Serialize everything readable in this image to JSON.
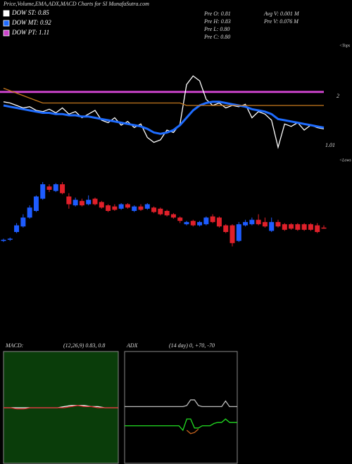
{
  "chart_data": [
    {
      "type": "line",
      "title": "Price,Volume,EMA,ADX,MACD Charts for SI MunafaSutra.com",
      "stats": [
        "Pre O: 0.81",
        "Pre H: 0.83",
        "Pre L: 0.80",
        "Pre C: 0.80",
        "Avg V: 0.001 M",
        "Pre V: 0.076 M"
      ],
      "annotations": [
        "<Tops",
        "2",
        "1.01",
        "<Lows"
      ],
      "ylim": [
        0.6,
        1.4
      ],
      "series": [
        {
          "name": "DOW ST: 0.85",
          "color": "#ffffff",
          "values": [
            1.03,
            1.02,
            1.0,
            0.98,
            0.99,
            0.96,
            0.95,
            0.97,
            0.94,
            0.98,
            0.93,
            0.95,
            0.9,
            0.93,
            0.96,
            0.88,
            0.86,
            0.9,
            0.84,
            0.87,
            0.82,
            0.85,
            0.74,
            0.7,
            0.72,
            0.8,
            0.78,
            0.85,
            1.17,
            1.24,
            1.2,
            1.05,
            1.0,
            1.02,
            0.98,
            1.0,
            0.99,
            1.01,
            0.9,
            0.95,
            0.93,
            0.88,
            0.66,
            0.85,
            0.83,
            0.86,
            0.8,
            0.84,
            0.82,
            0.81
          ]
        },
        {
          "name": "DOW MT: 0.92",
          "color": "#1e6cff",
          "values": [
            1.0,
            0.99,
            0.98,
            0.97,
            0.96,
            0.95,
            0.94,
            0.94,
            0.93,
            0.93,
            0.92,
            0.92,
            0.91,
            0.91,
            0.9,
            0.89,
            0.88,
            0.87,
            0.86,
            0.85,
            0.84,
            0.83,
            0.81,
            0.78,
            0.77,
            0.78,
            0.8,
            0.84,
            0.9,
            0.96,
            1.0,
            1.02,
            1.03,
            1.03,
            1.02,
            1.01,
            1.0,
            0.99,
            0.97,
            0.96,
            0.95,
            0.93,
            0.89,
            0.88,
            0.87,
            0.86,
            0.85,
            0.84,
            0.83,
            0.82
          ]
        },
        {
          "color": "#c87a1e",
          "values": [
            1.14,
            1.12,
            1.1,
            1.08,
            1.06,
            1.04,
            1.02,
            1.02,
            1.02,
            1.02,
            1.02,
            1.02,
            1.02,
            1.02,
            1.02,
            1.02,
            1.02,
            1.02,
            1.02,
            1.02,
            1.02,
            1.02,
            1.02,
            1.02,
            1.02,
            1.02,
            1.02,
            1.02,
            1.0,
            1.0,
            1.0,
            1.0,
            1.0,
            1.0,
            1.0,
            1.0,
            1.0,
            1.0,
            1.0,
            1.0,
            1.0,
            1.0,
            1.0,
            1.0,
            1.0,
            1.0,
            1.0,
            1.0,
            1.0,
            1.0
          ]
        }
      ],
      "levels": [
        {
          "name": "DOW PT: 1.11",
          "color": "#cc44cc",
          "value": 1.11
        }
      ]
    },
    {
      "type": "candlestick",
      "ylim": [
        0.58,
        1.34
      ],
      "up_color": "#1e5cff",
      "down_color": "#e0202a",
      "open": [
        0.69,
        0.7,
        0.77,
        0.82,
        0.9,
        0.96,
        1.07,
        1.18,
        1.14,
        1.2,
        1.09,
        1.01,
        1.05,
        1.02,
        1.07,
        1.04,
        1.01,
        1.0,
        0.98,
        1.02,
        0.96,
        1.0,
        0.98,
        0.99,
        0.98,
        0.96,
        0.93,
        0.9,
        0.84,
        0.87,
        0.83,
        0.84,
        0.91,
        0.9,
        0.83,
        0.83,
        0.69,
        0.83,
        0.84,
        0.88,
        0.86,
        0.78,
        0.86,
        0.84,
        0.84,
        0.84,
        0.84,
        0.84,
        0.83,
        0.81
      ],
      "high": [
        0.71,
        0.72,
        0.85,
        0.93,
        1.01,
        1.1,
        1.22,
        1.2,
        1.21,
        1.22,
        1.12,
        1.08,
        1.07,
        1.1,
        1.08,
        1.05,
        1.02,
        1.02,
        1.03,
        1.03,
        1.01,
        1.02,
        1.03,
        1.0,
        0.99,
        0.97,
        0.94,
        0.91,
        0.87,
        0.88,
        0.87,
        0.91,
        0.93,
        0.91,
        0.84,
        0.84,
        0.86,
        0.88,
        0.9,
        0.93,
        0.9,
        0.9,
        0.88,
        0.85,
        0.85,
        0.85,
        0.85,
        0.85,
        0.85,
        0.83
      ],
      "low": [
        0.68,
        0.69,
        0.76,
        0.81,
        0.89,
        0.95,
        1.06,
        1.13,
        1.13,
        1.11,
        0.98,
        1.0,
        1.0,
        1.01,
        1.01,
        0.98,
        0.95,
        0.96,
        0.97,
        0.98,
        0.95,
        0.96,
        0.97,
        0.94,
        0.92,
        0.91,
        0.89,
        0.85,
        0.83,
        0.82,
        0.82,
        0.83,
        0.85,
        0.81,
        0.76,
        0.64,
        0.68,
        0.82,
        0.83,
        0.83,
        0.81,
        0.77,
        0.81,
        0.78,
        0.79,
        0.78,
        0.78,
        0.78,
        0.76,
        0.8
      ],
      "close": [
        0.7,
        0.71,
        0.83,
        0.9,
        0.99,
        1.09,
        1.2,
        1.15,
        1.2,
        1.12,
        1.02,
        1.06,
        1.01,
        1.06,
        1.02,
        0.99,
        0.96,
        0.97,
        1.02,
        0.99,
        1.0,
        0.97,
        1.02,
        0.95,
        0.93,
        0.92,
        0.9,
        0.87,
        0.86,
        0.83,
        0.86,
        0.9,
        0.86,
        0.82,
        0.77,
        0.67,
        0.84,
        0.86,
        0.88,
        0.84,
        0.82,
        0.86,
        0.82,
        0.79,
        0.8,
        0.79,
        0.79,
        0.79,
        0.77,
        0.8
      ]
    },
    {
      "type": "line",
      "title": "MACD:",
      "subtitle": "(12,26,9) 0.83, 0.8",
      "background": "#0a3d0a",
      "ylim": [
        -0.5,
        0.5
      ],
      "series": [
        {
          "color": "#ffffff",
          "values": [
            0,
            0,
            0,
            0,
            0,
            0,
            0,
            0,
            0,
            0.01,
            0.02,
            0.02,
            0.02,
            0.01,
            0.01,
            0,
            0,
            0
          ]
        },
        {
          "color": "#e0202a",
          "values": [
            0,
            0,
            -0.01,
            -0.01,
            0,
            0,
            0,
            0,
            0,
            0,
            0.01,
            0.02,
            0.01,
            0.01,
            0,
            0,
            0,
            0
          ]
        }
      ]
    },
    {
      "type": "line",
      "title": "ADX",
      "subtitle": "(14 day) 0, +70, -70",
      "background": "#000000",
      "ylim": [
        0,
        100
      ],
      "series": [
        {
          "color": "#bbbbbb",
          "values": [
            51,
            51,
            51,
            51,
            51,
            51,
            51,
            51,
            51,
            51,
            51,
            51,
            51,
            51,
            51,
            51,
            52,
            57,
            57,
            52,
            51,
            51,
            51,
            51,
            51,
            51,
            56,
            51,
            51,
            51
          ]
        },
        {
          "color": "#22dd22",
          "values": [
            34,
            34,
            34,
            34,
            34,
            34,
            34,
            34,
            34,
            34,
            34,
            34,
            34,
            34,
            34,
            30,
            40,
            40,
            32,
            32,
            34,
            34,
            34,
            36,
            37,
            37,
            40,
            37,
            37,
            37
          ]
        },
        {
          "color": "#c8641e",
          "values": [
            null,
            null,
            null,
            null,
            null,
            null,
            null,
            null,
            null,
            null,
            null,
            null,
            null,
            null,
            null,
            null,
            30,
            27,
            28,
            31,
            null,
            null,
            null,
            null,
            null,
            null,
            null,
            null,
            null,
            null
          ]
        }
      ]
    }
  ]
}
